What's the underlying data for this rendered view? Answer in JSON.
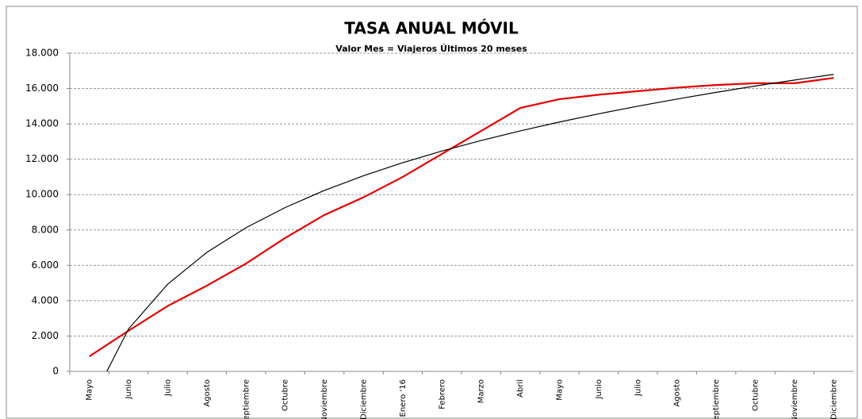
{
  "chart_data": {
    "type": "line",
    "title": "TASA ANUAL MÓVIL",
    "subtitle": "Valor Mes = Viajeros Últimos 20 meses",
    "categories": [
      "Mayo",
      "Junio",
      "Julio",
      "Agosto",
      "Septiembre",
      "Octubre",
      "Noviembre",
      "Diciembre",
      "Enero '16",
      "Febrero",
      "Marzo",
      "Abril",
      "Mayo",
      "Junio",
      "Julio",
      "Agosto",
      "Septiembre",
      "Octubre",
      "Noviembre",
      "Diciembre"
    ],
    "series": [
      {
        "color": "#e60000",
        "values": [
          850,
          2300,
          3700,
          4850,
          6100,
          7550,
          8850,
          9850,
          11000,
          12300,
          13600,
          14900,
          15400,
          15650,
          15850,
          16050,
          16200,
          16300,
          16300,
          16600
        ]
      },
      {
        "color": "#000000",
        "values": [
          -1935,
          2400,
          4936,
          6735,
          8130,
          9270,
          10235,
          11070,
          11806,
          12465,
          13061,
          13605,
          14106,
          14570,
          15001,
          15405,
          15784,
          16142,
          16480,
          16800
        ]
      }
    ],
    "ylim": [
      0,
      18000
    ],
    "yticks": [
      0,
      {
        "value": 2000,
        "label": "2.000"
      },
      {
        "value": 4000,
        "label": "4.000"
      },
      {
        "value": 6000,
        "label": "6.000"
      },
      {
        "value": 8000,
        "label": "8.000"
      },
      {
        "value": 10000,
        "label": "10.000"
      },
      {
        "value": 12000,
        "label": "12.000"
      },
      {
        "value": 14000,
        "label": "14.000"
      },
      {
        "value": 16000,
        "label": "16.000"
      },
      {
        "value": 18000,
        "label": "18.000"
      }
    ],
    "grid": true
  }
}
